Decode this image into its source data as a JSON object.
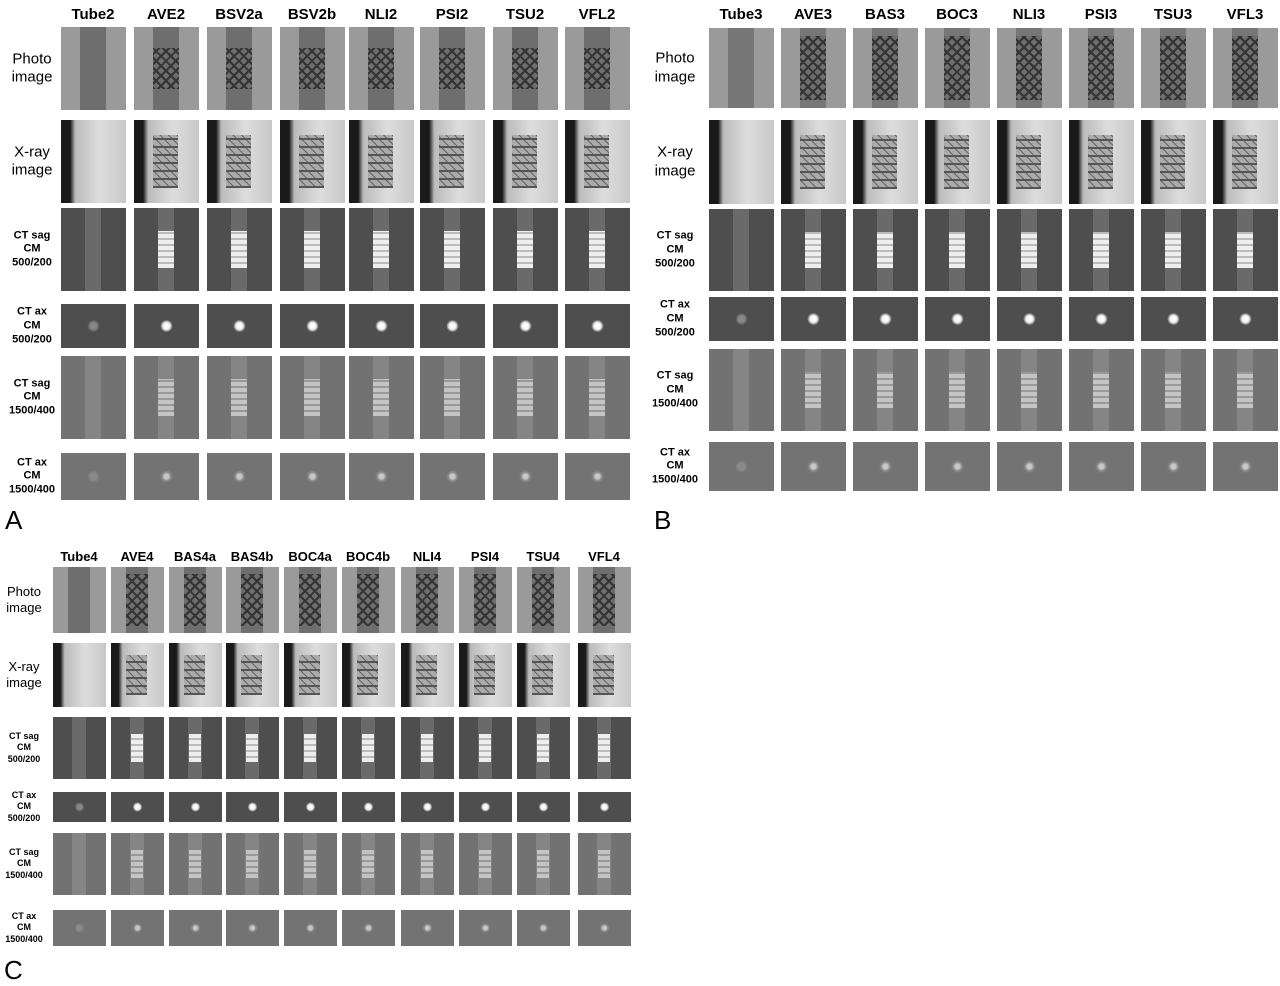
{
  "panels": [
    {
      "label": "A",
      "columns": [
        "Tube2",
        "AVE2",
        "BSV2a",
        "BSV2b",
        "NLI2",
        "PSI2",
        "TSU2",
        "VFL2"
      ],
      "rows": [
        [
          "Photo",
          "image"
        ],
        [
          "X-ray",
          "image"
        ],
        [
          "CT sag",
          "CM",
          "500/200"
        ],
        [
          "CT ax",
          "CM",
          "500/200"
        ],
        [
          "CT sag",
          "CM",
          "1500/400"
        ],
        [
          "CT ax",
          "CM",
          "1500/400"
        ]
      ]
    },
    {
      "label": "B",
      "columns": [
        "Tube3",
        "AVE3",
        "BAS3",
        "BOC3",
        "NLI3",
        "PSI3",
        "TSU3",
        "VFL3"
      ],
      "rows": [
        [
          "Photo",
          "image"
        ],
        [
          "X-ray",
          "image"
        ],
        [
          "CT sag",
          "CM",
          "500/200"
        ],
        [
          "CT ax",
          "CM",
          "500/200"
        ],
        [
          "CT sag",
          "CM",
          "1500/400"
        ],
        [
          "CT ax",
          "CM",
          "1500/400"
        ]
      ]
    },
    {
      "label": "C",
      "columns": [
        "Tube4",
        "AVE4",
        "BAS4a",
        "BAS4b",
        "BOC4a",
        "BOC4b",
        "NLI4",
        "PSI4",
        "TSU4",
        "VFL4"
      ],
      "rows": [
        [
          "Photo",
          "image"
        ],
        [
          "X-ray",
          "image"
        ],
        [
          "CT sag",
          "CM",
          "500/200"
        ],
        [
          "CT ax",
          "CM",
          "500/200"
        ],
        [
          "CT sag",
          "CM",
          "1500/400"
        ],
        [
          "CT ax",
          "CM",
          "1500/400"
        ]
      ]
    }
  ]
}
